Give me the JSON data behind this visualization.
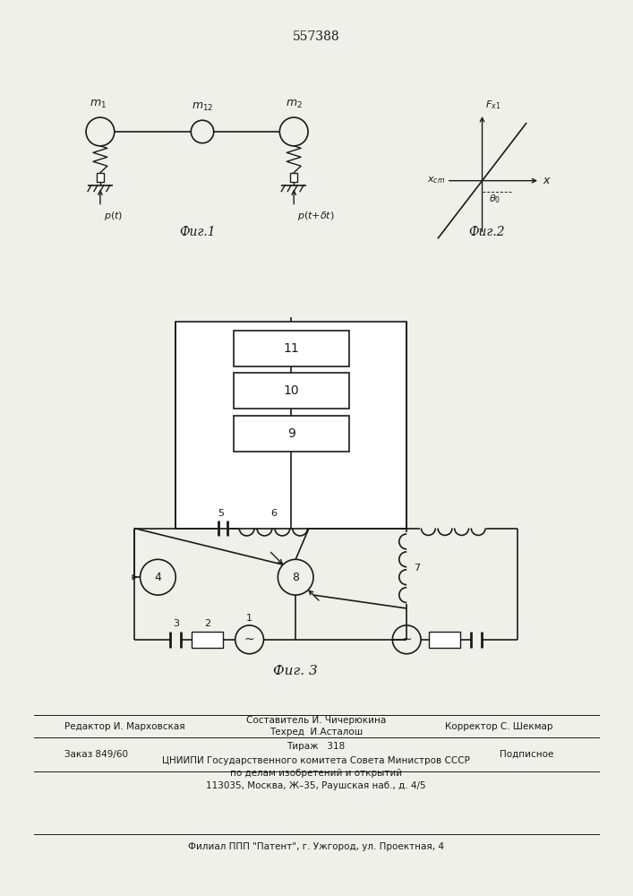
{
  "patent_number": "557388",
  "fig1_caption": "Фиг.1",
  "fig2_caption": "Фиг.2",
  "fig3_caption": "Фиг. 3",
  "editor_line": "Редактор И. Марховская",
  "composer_line": "Составитель И. Чичерюкина",
  "tech_line": "Техред  И.Асталош",
  "corrector_line": "Корректор С. Шекмар",
  "order_line": "Заказ 849/60",
  "tirazh_line": "Тираж   318",
  "podpisnoe_line": "Подписное",
  "tsniippi_line": "ЦНИИПИ Государственного комитета Совета Министров СССР",
  "po_delam_line": "по делам изобретений и открытий",
  "address_line": "113035, Москва, Ж–35, Раушская наб., д. 4/5",
  "filial_line": "Филиал ППП \"Патент\", г. Ужгород, ул. Проектная, 4",
  "bg_color": "#f0f0eb",
  "line_color": "#1a1a1a"
}
